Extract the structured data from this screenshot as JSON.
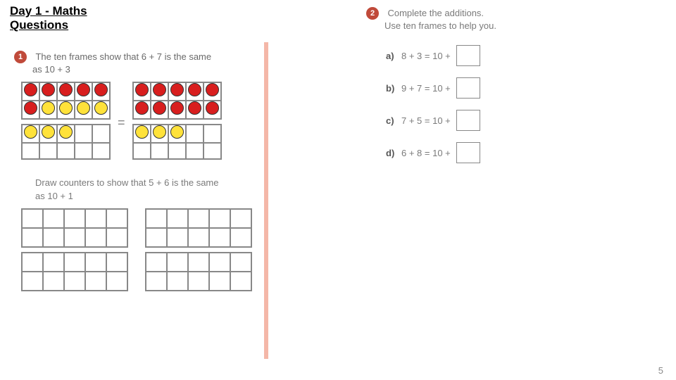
{
  "page": {
    "title": "Day 1 - Maths\nQuestions",
    "number": "5"
  },
  "divider_color": "#f4b7a8",
  "colors": {
    "red": "#d81e1e",
    "yellow": "#ffe23a",
    "badge": "#c04a3a"
  },
  "q1": {
    "badge": "1",
    "text_a1": "The ten frames show that 6 + 7 is the same",
    "text_a2": "as 10 + 3",
    "frames_a": {
      "left": {
        "top": [
          [
            "red",
            "red",
            "red",
            "red",
            "red"
          ],
          [
            "red",
            "yellow",
            "yellow",
            "yellow",
            "yellow"
          ]
        ],
        "bottom": [
          [
            "yellow",
            "yellow",
            "yellow",
            "",
            ""
          ],
          [
            "",
            "",
            "",
            "",
            ""
          ]
        ]
      },
      "right": {
        "top": [
          [
            "red",
            "red",
            "red",
            "red",
            "red"
          ],
          [
            "red",
            "red",
            "red",
            "red",
            "red"
          ]
        ],
        "bottom": [
          [
            "yellow",
            "yellow",
            "yellow",
            "",
            ""
          ],
          [
            "",
            "",
            "",
            "",
            ""
          ]
        ]
      },
      "equals": "="
    },
    "text_b1": "Draw counters to show that 5 + 6 is the same",
    "text_b2": "as 10 + 1"
  },
  "q2": {
    "badge": "2",
    "line1": "Complete the additions.",
    "line2": "Use ten frames to help you.",
    "items": [
      {
        "label": "a)",
        "eq": "8 + 3 = 10 +"
      },
      {
        "label": "b)",
        "eq": "9 + 7 = 10 +"
      },
      {
        "label": "c)",
        "eq": "7 + 5 = 10 +"
      },
      {
        "label": "d)",
        "eq": "6 + 8 = 10 +"
      }
    ]
  }
}
